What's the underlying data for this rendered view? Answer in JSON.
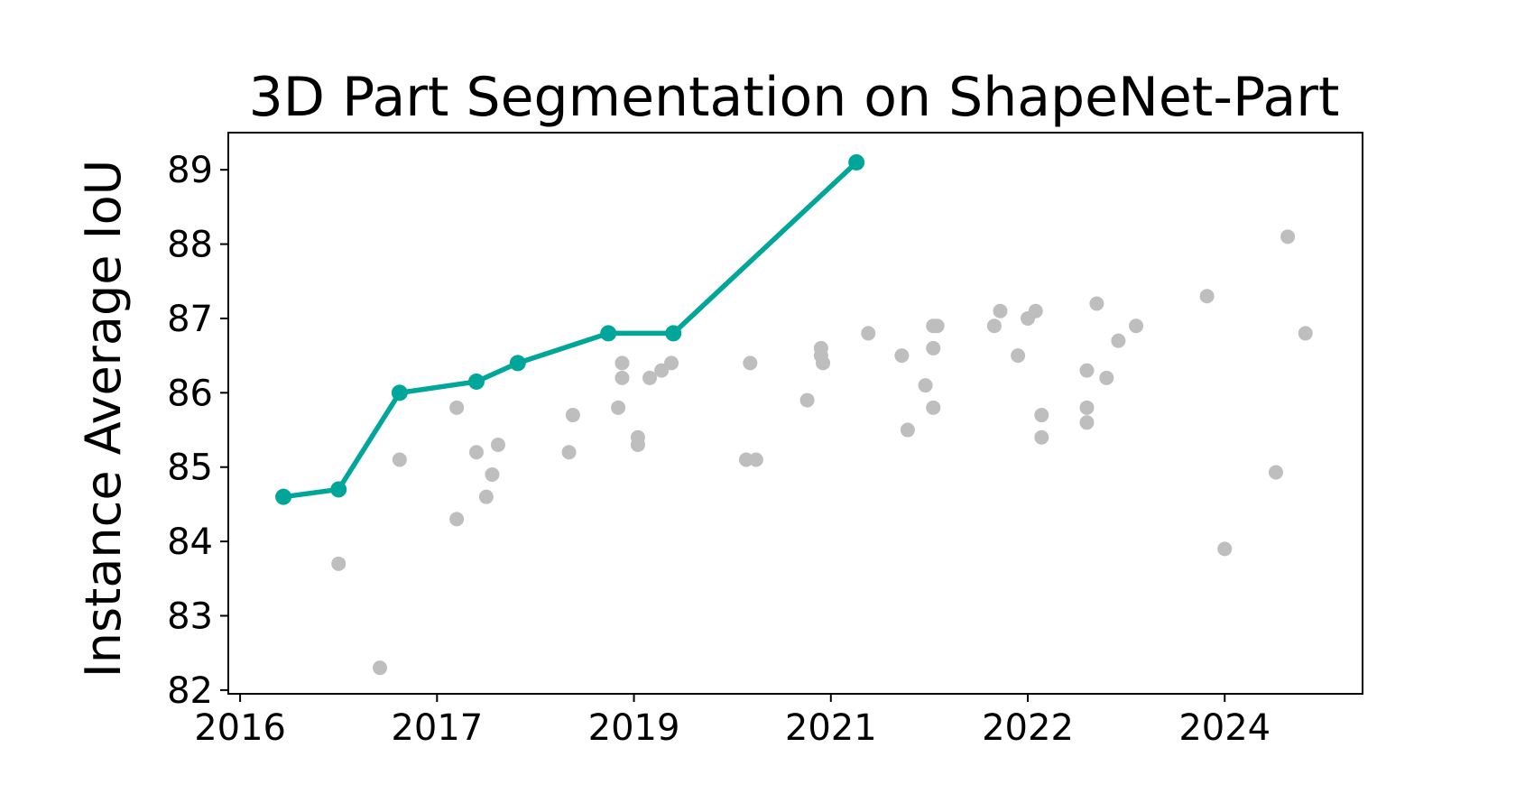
{
  "chart_data": {
    "type": "scatter",
    "title": "3D Part Segmentation on ShapeNet-Part",
    "xlabel": "",
    "ylabel": "Instance Average IoU",
    "x_ticks": [
      {
        "value": 2016.0,
        "label": "2016"
      },
      {
        "value": 2017.0,
        "label": "2017"
      },
      {
        "value": 2018.0,
        "label": "2019"
      },
      {
        "value": 2019.0,
        "label": "2021"
      },
      {
        "value": 2020.0,
        "label": "2022"
      },
      {
        "value": 2021.0,
        "label": "2024"
      }
    ],
    "y_ticks": [
      82,
      83,
      84,
      85,
      86,
      87,
      88,
      89
    ],
    "xlim": [
      2015.94,
      2021.7
    ],
    "ylim": [
      81.95,
      89.5
    ],
    "grid": false,
    "colors": {
      "sota": "#00a699",
      "other": "#bebebe"
    },
    "series": [
      {
        "values": [
          [
            2016.22,
            84.6
          ],
          [
            2016.5,
            84.7
          ],
          [
            2016.81,
            86.0
          ],
          [
            2017.2,
            86.15
          ],
          [
            2017.41,
            86.4
          ],
          [
            2017.87,
            86.8
          ],
          [
            2018.2,
            86.8
          ],
          [
            2019.13,
            89.1
          ]
        ]
      },
      {
        "values": [
          [
            2016.5,
            83.7
          ],
          [
            2016.71,
            82.3
          ],
          [
            2016.81,
            85.1
          ],
          [
            2017.1,
            85.8
          ],
          [
            2017.1,
            84.3
          ],
          [
            2017.2,
            85.2
          ],
          [
            2017.25,
            84.6
          ],
          [
            2017.28,
            84.9
          ],
          [
            2017.31,
            85.3
          ],
          [
            2017.67,
            85.2
          ],
          [
            2017.69,
            85.7
          ],
          [
            2017.92,
            85.8
          ],
          [
            2017.94,
            86.2
          ],
          [
            2017.94,
            86.4
          ],
          [
            2018.02,
            85.4
          ],
          [
            2018.02,
            85.3
          ],
          [
            2018.08,
            86.2
          ],
          [
            2018.14,
            86.3
          ],
          [
            2018.19,
            86.4
          ],
          [
            2018.57,
            85.1
          ],
          [
            2018.59,
            86.4
          ],
          [
            2018.62,
            85.1
          ],
          [
            2018.88,
            85.9
          ],
          [
            2018.95,
            86.5
          ],
          [
            2018.95,
            86.6
          ],
          [
            2018.96,
            86.4
          ],
          [
            2019.19,
            86.8
          ],
          [
            2019.36,
            86.5
          ],
          [
            2019.39,
            85.5
          ],
          [
            2019.48,
            86.1
          ],
          [
            2019.52,
            86.9
          ],
          [
            2019.52,
            86.6
          ],
          [
            2019.52,
            85.8
          ],
          [
            2019.54,
            86.9
          ],
          [
            2019.83,
            86.9
          ],
          [
            2019.86,
            87.1
          ],
          [
            2019.95,
            86.5
          ],
          [
            2020.0,
            87.0
          ],
          [
            2020.04,
            87.1
          ],
          [
            2020.07,
            85.7
          ],
          [
            2020.07,
            85.4
          ],
          [
            2020.3,
            86.3
          ],
          [
            2020.3,
            85.8
          ],
          [
            2020.3,
            85.6
          ],
          [
            2020.35,
            87.2
          ],
          [
            2020.4,
            86.2
          ],
          [
            2020.46,
            86.7
          ],
          [
            2020.55,
            86.9
          ],
          [
            2020.91,
            87.3
          ],
          [
            2021.0,
            83.9
          ],
          [
            2021.26,
            84.93
          ],
          [
            2021.32,
            88.1
          ],
          [
            2021.41,
            86.8
          ]
        ]
      }
    ]
  }
}
